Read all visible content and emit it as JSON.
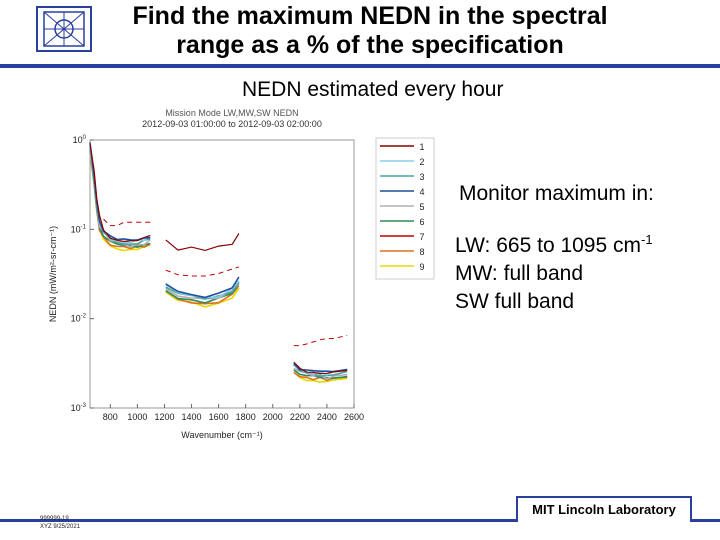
{
  "slide": {
    "title_line1": "Find the maximum NEDN in the spectral",
    "title_line2": "range as a % of the specification",
    "subtitle": "NEDN estimated every hour",
    "monitor_heading": "Monitor maximum in:",
    "lw_text": "LW: 665 to 1095 cm",
    "lw_exponent": "-1",
    "mw_text": "MW: full band",
    "sw_text": "SW full band",
    "lab_name": "MIT Lincoln Laboratory",
    "footnote_line1": "999999-19",
    "footnote_line2": "XYZ 9/25/2021",
    "accent_color": "#2a3ea0",
    "logo": "institution-seal-icon"
  },
  "chart_data": {
    "type": "line",
    "title": "Mission Mode LW,MW,SW NEDN",
    "subtitle": "2012-09-03 01:00:00 to 2012-09-03 02:00:00",
    "xlabel": "Wavenumber (cm⁻¹)",
    "ylabel": "NEDN (mW/m²-sr-cm⁻¹)",
    "xlim": [
      650,
      2600
    ],
    "ylim": [
      0.001,
      1
    ],
    "yscale": "log",
    "x_ticks": [
      "800",
      "1000",
      "1200",
      "1400",
      "1600",
      "1800",
      "2000",
      "2200",
      "2400",
      "2600"
    ],
    "y_ticks": [
      "10^0",
      "10^-1",
      "10^-2",
      "10^-3"
    ],
    "grid": false,
    "legend": {
      "placement": "right",
      "entries": [
        "1",
        "2",
        "3",
        "4",
        "5",
        "6",
        "7",
        "8",
        "9"
      ]
    },
    "series_colors": [
      "#8b0000",
      "#87ceeb",
      "#4aa3a3",
      "#1f4e9c",
      "#b0b0b0",
      "#2e8b57",
      "#c00000",
      "#e07020",
      "#e6d800"
    ],
    "bands": [
      {
        "name_band": "LW",
        "x": [
          650,
          680,
          700,
          720,
          750,
          800,
          850,
          900,
          950,
          1000,
          1050,
          1095
        ],
        "typical": [
          0.8,
          0.35,
          0.18,
          0.11,
          0.09,
          0.075,
          0.07,
          0.068,
          0.066,
          0.068,
          0.07,
          0.075
        ],
        "spec": [
          null,
          null,
          null,
          null,
          0.13,
          0.11,
          0.11,
          0.12,
          0.12,
          0.12,
          0.12,
          0.12
        ],
        "max": [
          0.9,
          0.45,
          0.22,
          0.14,
          0.1,
          0.08,
          0.077,
          0.075,
          0.073,
          0.075,
          0.078,
          0.085
        ]
      },
      {
        "name_band": "MW",
        "x": [
          1210,
          1300,
          1400,
          1500,
          1600,
          1700,
          1750
        ],
        "typical": [
          0.022,
          0.018,
          0.017,
          0.016,
          0.017,
          0.02,
          0.025
        ],
        "spec": [
          0.035,
          0.031,
          0.03,
          0.03,
          0.032,
          0.036,
          0.038
        ],
        "max": [
          0.075,
          0.058,
          0.062,
          0.06,
          0.065,
          0.07,
          0.09
        ]
      },
      {
        "name_band": "SW",
        "x": [
          2155,
          2200,
          2250,
          2300,
          2350,
          2400,
          2450,
          2550
        ],
        "typical": [
          0.0028,
          0.0025,
          0.0024,
          0.0023,
          0.0023,
          0.0022,
          0.0023,
          0.0024
        ],
        "spec": [
          0.005,
          0.005,
          0.0052,
          0.0055,
          0.0058,
          0.006,
          0.006,
          0.0065
        ],
        "max": [
          0.0032,
          0.0028,
          0.0026,
          0.0025,
          0.0025,
          0.0024,
          0.0025,
          0.0026
        ]
      }
    ]
  }
}
